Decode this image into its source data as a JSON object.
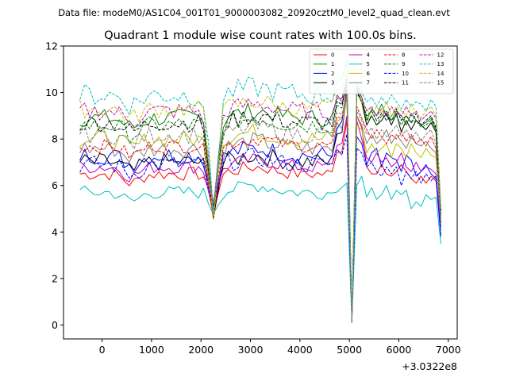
{
  "suptitle": "Data file: modeM0/AS1C04_001T01_9000003082_20920cztM0_level2_quad_clean.evt",
  "chart_data": {
    "type": "line",
    "title": "Quadrant 1 module wise count rates with 100.0s bins.",
    "xlabel": "",
    "ylabel": "",
    "x_offset_text": "+3.0322e8",
    "xlim": [
      -780,
      7180
    ],
    "ylim": [
      -0.6,
      12.0
    ],
    "xticks": [
      0,
      1000,
      2000,
      3000,
      4000,
      5000,
      6000,
      7000
    ],
    "xtick_labels": [
      "0",
      "1000",
      "2000",
      "3000",
      "4000",
      "5000",
      "6000",
      "7000"
    ],
    "yticks": [
      0,
      2,
      4,
      6,
      8,
      10,
      12
    ],
    "ytick_labels": [
      "0",
      "2",
      "4",
      "6",
      "8",
      "10",
      "12"
    ],
    "legend_position": "top-right",
    "legend_columns": 4,
    "gap": [
      5000,
      5200
    ],
    "x_seg1": [
      -450,
      -350,
      -250,
      -150,
      -50,
      50,
      150,
      250,
      350,
      450,
      550,
      650,
      750,
      850,
      950,
      1050,
      1150,
      1250,
      1350,
      1450,
      1550,
      1650,
      1750,
      1850,
      1950,
      2050,
      2150,
      2250,
      2350,
      2450,
      2550,
      2650,
      2750,
      2850,
      2950,
      3050,
      3150,
      3250,
      3350,
      3450,
      3550,
      3650,
      3750,
      3850,
      3950,
      4050,
      4150,
      4250,
      4350,
      4450,
      4550,
      4650,
      4750,
      4850,
      4950
    ],
    "x_seg2": [
      5050,
      5150,
      5250,
      5350,
      5450,
      5550,
      5650,
      5750,
      5850,
      5950,
      6050,
      6150,
      6250,
      6350,
      6450,
      6550,
      6650,
      6750,
      6850
    ],
    "series": [
      {
        "name": "0",
        "color": "#ff0000",
        "dash": false,
        "base": 6.5,
        "amp": 0.3,
        "high": 8.8,
        "s2": [
          0.2,
          9.0,
          8.5,
          6.8,
          6.5,
          6.5,
          6.9,
          6.5,
          6.4,
          6.6,
          6.9,
          6.6,
          6.3,
          6.1,
          6.4,
          6.1,
          6.4,
          6.2,
          4.8
        ]
      },
      {
        "name": "1",
        "color": "#008000",
        "dash": false,
        "base": 8.9,
        "amp": 0.4,
        "high": 10.6,
        "s2": [
          0.3,
          10.3,
          9.8,
          8.8,
          9.3,
          9.0,
          9.5,
          9.0,
          8.8,
          9.2,
          9.0,
          8.6,
          9.1,
          8.8,
          8.6,
          8.7,
          8.9,
          8.4,
          4.4
        ]
      },
      {
        "name": "2",
        "color": "#0000ff",
        "dash": false,
        "base": 7.3,
        "amp": 0.4,
        "high": 10.2,
        "s2": [
          0.2,
          8.1,
          7.8,
          6.9,
          7.4,
          7.6,
          6.8,
          7.4,
          7.2,
          7.1,
          6.6,
          7.3,
          7.1,
          6.4,
          6.6,
          6.9,
          6.5,
          6.3,
          3.8
        ]
      },
      {
        "name": "3",
        "color": "#000000",
        "dash": false,
        "base": 7.0,
        "amp": 0.4,
        "high": 10.0,
        "s2": [
          0.1,
          10.1,
          9.6,
          8.6,
          9.0,
          8.6,
          8.8,
          9.1,
          8.6,
          9.1,
          8.3,
          8.8,
          8.4,
          8.8,
          8.6,
          8.4,
          8.7,
          8.3,
          4.9
        ]
      },
      {
        "name": "4",
        "color": "#bf00bf",
        "dash": false,
        "base": 6.8,
        "amp": 0.3,
        "high": 9.0,
        "s2": [
          0.2,
          8.8,
          8.0,
          7.2,
          7.0,
          7.4,
          7.0,
          7.2,
          6.8,
          7.0,
          7.4,
          6.8,
          6.6,
          7.0,
          6.6,
          6.8,
          6.7,
          6.5,
          4.2
        ]
      },
      {
        "name": "5",
        "color": "#00bfbf",
        "dash": false,
        "base": 5.7,
        "amp": 0.3,
        "high": 6.1,
        "s2": [
          0.1,
          6.0,
          6.4,
          5.5,
          5.9,
          5.4,
          5.6,
          6.0,
          5.4,
          5.8,
          5.6,
          5.8,
          5.0,
          5.3,
          5.1,
          5.6,
          5.4,
          5.5,
          3.5
        ]
      },
      {
        "name": "6",
        "color": "#bfbf00",
        "dash": false,
        "base": 8.0,
        "amp": 0.4,
        "high": 9.8,
        "s2": [
          0.2,
          8.6,
          8.4,
          7.4,
          7.8,
          7.4,
          7.6,
          7.8,
          7.2,
          7.8,
          7.6,
          7.2,
          7.8,
          7.4,
          7.2,
          7.6,
          7.3,
          7.2,
          4.6
        ]
      },
      {
        "name": "7",
        "color": "#808080",
        "dash": false,
        "base": 7.6,
        "amp": 0.4,
        "high": 9.9,
        "s2": [
          0.2,
          9.0,
          8.6,
          7.8,
          8.2,
          7.8,
          8.0,
          8.4,
          7.8,
          8.2,
          7.9,
          7.6,
          8.1,
          7.8,
          7.7,
          7.9,
          7.6,
          7.4,
          4.4
        ]
      },
      {
        "name": "8",
        "color": "#ff0000",
        "dash": true,
        "base": 7.7,
        "amp": 0.3,
        "high": 10.1,
        "s2": [
          0.2,
          9.4,
          8.9,
          8.4,
          8.0,
          8.4,
          8.1,
          7.8,
          8.2,
          8.0,
          8.3,
          7.9,
          8.2,
          7.8,
          8.0,
          7.7,
          8.1,
          7.6,
          4.9
        ]
      },
      {
        "name": "9",
        "color": "#008000",
        "dash": true,
        "base": 8.6,
        "amp": 0.4,
        "high": 10.4,
        "s2": [
          0.3,
          10.2,
          9.6,
          8.8,
          9.0,
          8.6,
          9.0,
          9.2,
          8.8,
          9.0,
          8.6,
          9.0,
          8.7,
          8.8,
          8.5,
          8.6,
          8.8,
          8.4,
          4.6
        ]
      },
      {
        "name": "10",
        "color": "#0000ff",
        "dash": true,
        "base": 6.9,
        "amp": 0.4,
        "high": 8.2,
        "s2": [
          0.2,
          7.6,
          7.4,
          6.8,
          7.0,
          6.6,
          6.4,
          6.8,
          6.5,
          6.8,
          6.0,
          6.6,
          6.3,
          6.6,
          6.1,
          6.5,
          6.2,
          6.4,
          3.9
        ]
      },
      {
        "name": "11",
        "color": "#000000",
        "dash": true,
        "base": 8.7,
        "amp": 0.4,
        "high": 10.3,
        "s2": [
          0.3,
          10.0,
          9.6,
          9.0,
          9.2,
          8.8,
          9.1,
          8.8,
          9.0,
          9.3,
          8.8,
          9.0,
          8.7,
          9.1,
          8.6,
          8.8,
          9.0,
          8.5,
          4.8
        ]
      },
      {
        "name": "12",
        "color": "#bf00bf",
        "dash": true,
        "base": 9.2,
        "amp": 0.4,
        "high": 10.5,
        "s2": [
          0.3,
          10.2,
          9.8,
          9.2,
          9.4,
          9.0,
          9.3,
          9.0,
          9.4,
          9.1,
          9.0,
          9.4,
          9.0,
          9.2,
          8.8,
          9.0,
          9.2,
          8.9,
          5.0
        ]
      },
      {
        "name": "13",
        "color": "#00bfbf",
        "dash": true,
        "base": 9.9,
        "amp": 0.5,
        "high": 11.4,
        "s2": [
          0.1,
          10.4,
          10.0,
          9.6,
          9.8,
          9.4,
          9.8,
          9.5,
          9.9,
          9.6,
          9.3,
          9.7,
          9.4,
          9.6,
          9.5,
          9.2,
          9.7,
          9.4,
          5.1
        ]
      },
      {
        "name": "14",
        "color": "#bfbf00",
        "dash": true,
        "base": 9.3,
        "amp": 0.4,
        "high": 10.9,
        "s2": [
          0.3,
          10.3,
          9.6,
          9.3,
          9.0,
          9.4,
          9.1,
          9.6,
          9.0,
          9.4,
          9.2,
          9.0,
          9.5,
          9.1,
          8.9,
          9.2,
          9.4,
          9.0,
          5.0
        ]
      },
      {
        "name": "15",
        "color": "#808080",
        "dash": true,
        "base": 8.2,
        "amp": 0.4,
        "high": 9.9,
        "s2": [
          0.2,
          9.2,
          8.8,
          8.2,
          8.5,
          8.0,
          8.4,
          8.1,
          8.3,
          8.6,
          8.1,
          8.4,
          8.0,
          8.3,
          7.9,
          8.2,
          8.4,
          7.8,
          4.7
        ]
      }
    ]
  }
}
